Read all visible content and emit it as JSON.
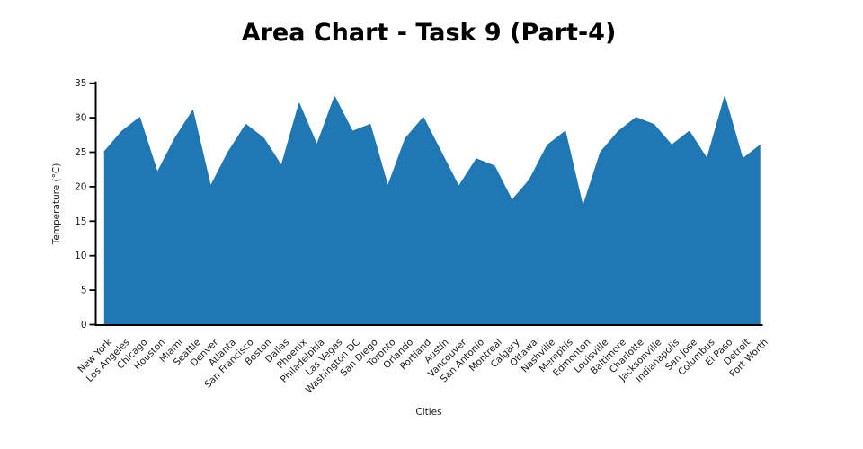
{
  "figure": {
    "background": "#ffffff"
  },
  "chart_data": {
    "type": "area",
    "title": "Area Chart - Task 9 (Part-4)",
    "xlabel": "Cities",
    "ylabel": "Temperature (°C)",
    "ylim": [
      0,
      35
    ],
    "yticks": [
      0,
      5,
      10,
      15,
      20,
      25,
      30,
      35
    ],
    "grid": false,
    "legend": false,
    "fill_color": "#1f77b4",
    "axis_color": "#000000",
    "categories": [
      "New York",
      "Los Angeles",
      "Chicago",
      "Houston",
      "Miami",
      "Seattle",
      "Denver",
      "Atlanta",
      "San Francisco",
      "Boston",
      "Dallas",
      "Phoenix",
      "Philadelphia",
      "Las Vegas",
      "Washington DC",
      "San Diego",
      "Toronto",
      "Orlando",
      "Portland",
      "Austin",
      "Vancouver",
      "San Antonio",
      "Montreal",
      "Calgary",
      "Ottawa",
      "Nashville",
      "Memphis",
      "Edmonton",
      "Louisville",
      "Baltimore",
      "Charlotte",
      "Jacksonville",
      "Indianapolis",
      "San Jose",
      "Columbus",
      "El Paso",
      "Detroit",
      "Fort Worth"
    ],
    "values": [
      25,
      28,
      30,
      22,
      27,
      31,
      20,
      25,
      29,
      27,
      23,
      32,
      26,
      33,
      28,
      29,
      20,
      27,
      30,
      25,
      20,
      24,
      23,
      18,
      21,
      26,
      28,
      17,
      25,
      28,
      30,
      29,
      26,
      28,
      24,
      33,
      24,
      26
    ]
  }
}
